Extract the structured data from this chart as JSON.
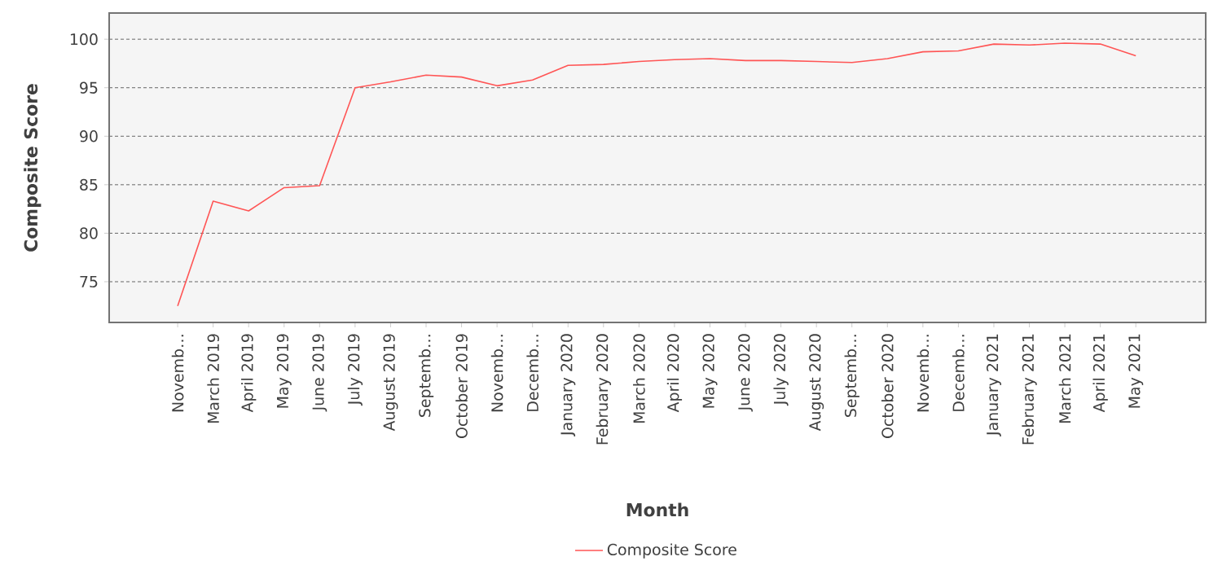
{
  "chart_data": {
    "type": "line",
    "xlabel": "Month",
    "ylabel": "Composite Score",
    "categories": [
      "Novemb…",
      "March 2019",
      "April 2019",
      "May 2019",
      "June 2019",
      "July 2019",
      "August 2019",
      "Septemb…",
      "October 2019",
      "Novemb…",
      "Decemb…",
      "January 2020",
      "February 2020",
      "March 2020",
      "April 2020",
      "May 2020",
      "June 2020",
      "July 2020",
      "August 2020",
      "Septemb…",
      "October 2020",
      "Novemb…",
      "Decemb…",
      "January 2021",
      "February 2021",
      "March 2021",
      "April 2021",
      "May 2021"
    ],
    "series": [
      {
        "name": "Composite Score",
        "color": "#ff5555",
        "values": [
          72.5,
          83.3,
          82.3,
          84.7,
          84.9,
          95.0,
          95.6,
          96.3,
          96.1,
          95.2,
          95.8,
          97.3,
          97.4,
          97.7,
          97.9,
          98.0,
          97.8,
          97.8,
          97.7,
          97.6,
          98.0,
          98.7,
          98.8,
          99.5,
          99.4,
          99.6,
          99.5,
          98.3
        ]
      }
    ],
    "ylim": [
      70.8,
      102.7
    ],
    "yticks": [
      75,
      80,
      85,
      90,
      95,
      100
    ],
    "grid": "y",
    "legend": "bottom"
  }
}
